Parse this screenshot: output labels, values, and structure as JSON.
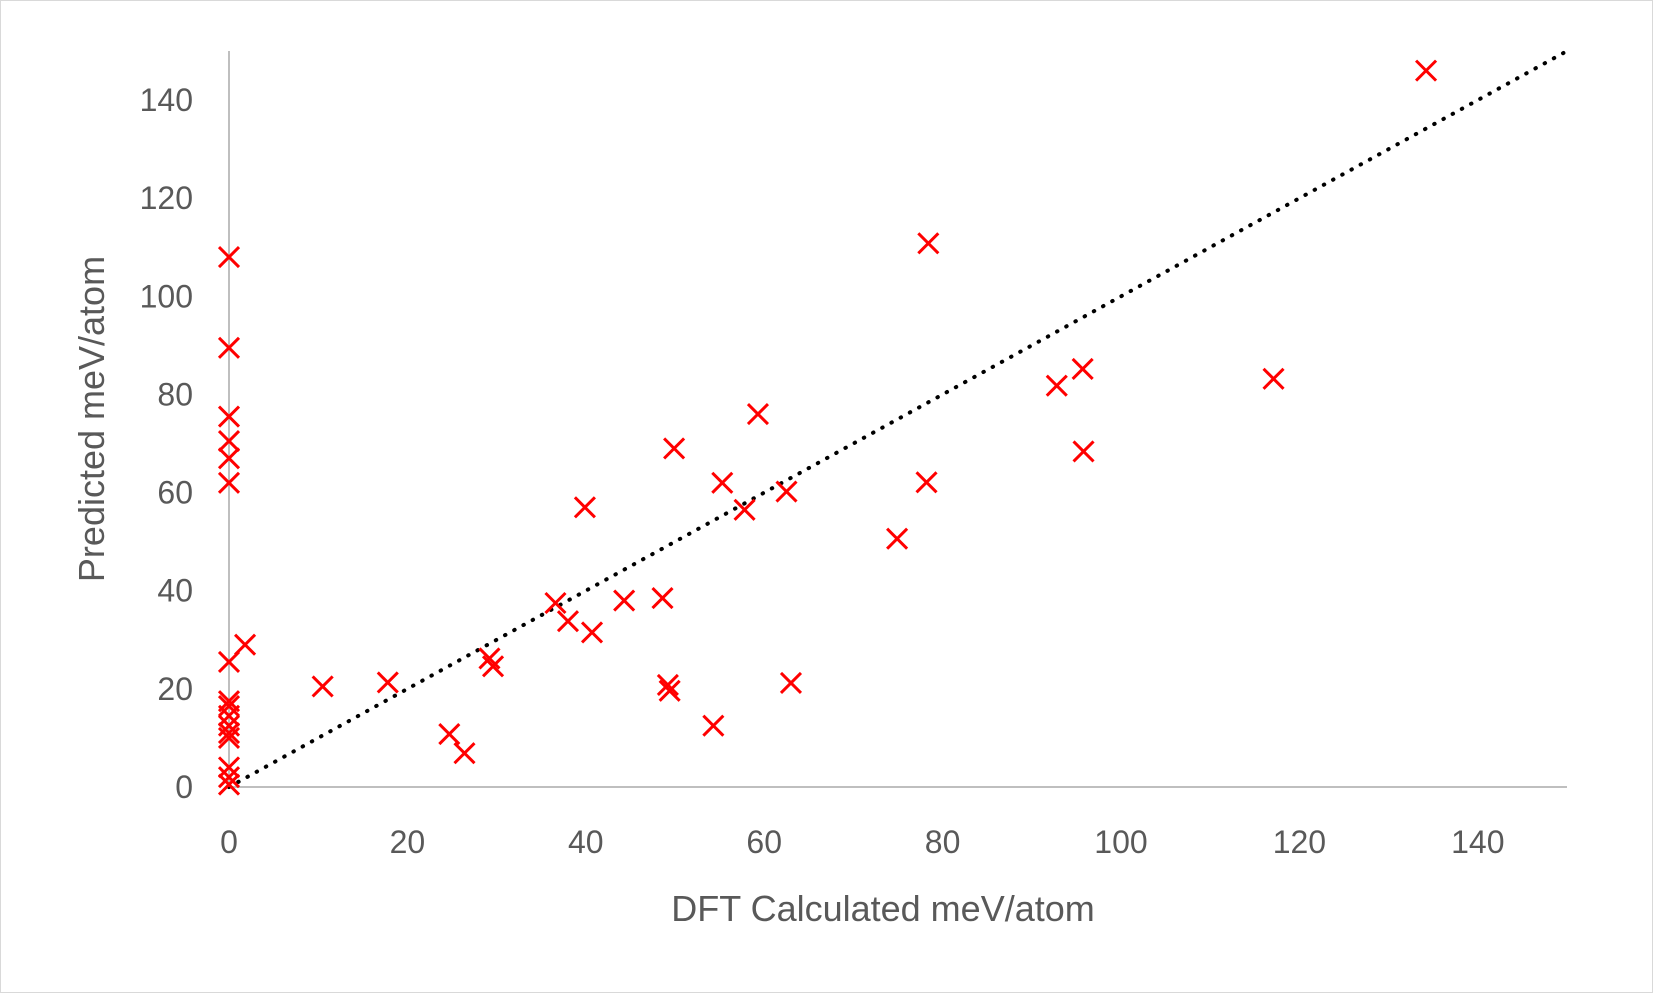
{
  "chart_data": {
    "type": "scatter",
    "xlabel": "DFT Calculated meV/atom",
    "ylabel": "Predicted meV/atom",
    "xlim": [
      0,
      150
    ],
    "ylim": [
      0,
      150
    ],
    "x_ticks": [
      0,
      20,
      40,
      60,
      80,
      100,
      120,
      140
    ],
    "y_ticks": [
      0,
      20,
      40,
      60,
      80,
      100,
      120,
      140
    ],
    "grid": false,
    "marker": "x",
    "marker_color": "#ff0000",
    "trendline": {
      "style": "dotted",
      "color": "#000000",
      "x": [
        0,
        150
      ],
      "y": [
        0,
        150
      ]
    },
    "points": [
      {
        "x": 0,
        "y": 108
      },
      {
        "x": 0,
        "y": 89.5
      },
      {
        "x": 0,
        "y": 75.5
      },
      {
        "x": 0,
        "y": 70.5
      },
      {
        "x": 0,
        "y": 67
      },
      {
        "x": 0,
        "y": 62
      },
      {
        "x": 0,
        "y": 25.5
      },
      {
        "x": 0,
        "y": 17.5
      },
      {
        "x": 0,
        "y": 16.5
      },
      {
        "x": 0,
        "y": 14.5
      },
      {
        "x": 0,
        "y": 12.5
      },
      {
        "x": 0,
        "y": 11
      },
      {
        "x": 0,
        "y": 10
      },
      {
        "x": 0,
        "y": 4
      },
      {
        "x": 0,
        "y": 2
      },
      {
        "x": 0,
        "y": 0.5
      },
      {
        "x": 1.8,
        "y": 29
      },
      {
        "x": 10.5,
        "y": 20.5
      },
      {
        "x": 17.8,
        "y": 21.3
      },
      {
        "x": 24.7,
        "y": 10.8
      },
      {
        "x": 26.4,
        "y": 6.9
      },
      {
        "x": 29.2,
        "y": 26.2
      },
      {
        "x": 29.6,
        "y": 24.6
      },
      {
        "x": 36.6,
        "y": 37.5
      },
      {
        "x": 38,
        "y": 33.8
      },
      {
        "x": 39.9,
        "y": 57
      },
      {
        "x": 40.7,
        "y": 31.5
      },
      {
        "x": 44.3,
        "y": 38
      },
      {
        "x": 48.6,
        "y": 38.5
      },
      {
        "x": 49.2,
        "y": 20.8
      },
      {
        "x": 49.4,
        "y": 19.6
      },
      {
        "x": 49.9,
        "y": 69
      },
      {
        "x": 54.3,
        "y": 12.5
      },
      {
        "x": 55.3,
        "y": 62
      },
      {
        "x": 57.8,
        "y": 56.5
      },
      {
        "x": 59.3,
        "y": 76
      },
      {
        "x": 62.5,
        "y": 60.2
      },
      {
        "x": 63,
        "y": 21.2
      },
      {
        "x": 74.9,
        "y": 50.6
      },
      {
        "x": 78.2,
        "y": 62.1
      },
      {
        "x": 78.4,
        "y": 110.8
      },
      {
        "x": 92.8,
        "y": 81.8
      },
      {
        "x": 95.7,
        "y": 85.2
      },
      {
        "x": 95.8,
        "y": 68.4
      },
      {
        "x": 117.1,
        "y": 83.2
      },
      {
        "x": 134.2,
        "y": 146
      }
    ]
  }
}
